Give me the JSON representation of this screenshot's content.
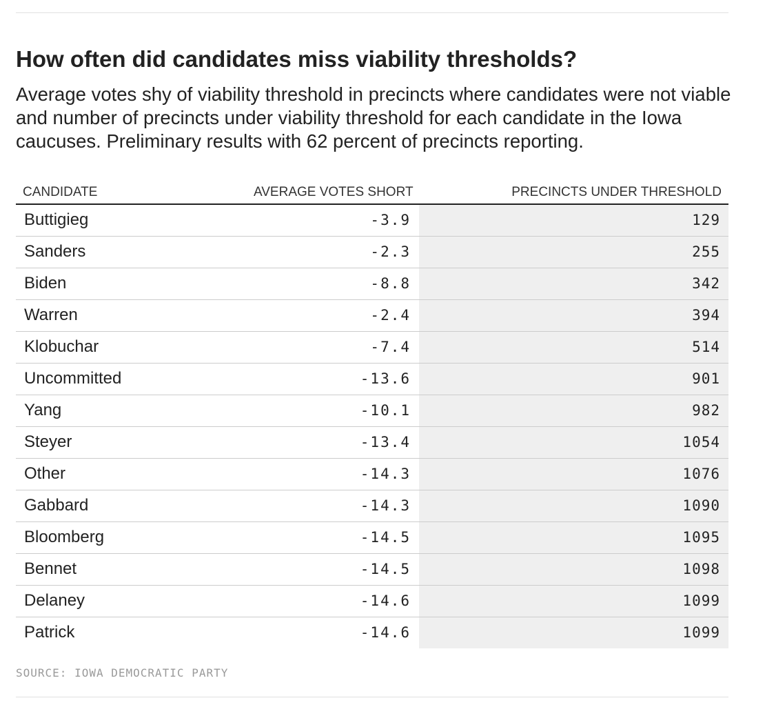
{
  "chart_data": {
    "type": "table",
    "title": "How often did candidates miss viability thresholds?",
    "subtitle": "Average votes shy of viability threshold in precincts where candidates were not viable and number of precincts under viability threshold for each candidate in the Iowa caucuses. Preliminary results with 62 percent of precincts reporting.",
    "columns": [
      "CANDIDATE",
      "AVERAGE VOTES SHORT",
      "PRECINCTS UNDER THRESHOLD"
    ],
    "rows": [
      {
        "candidate": "Buttigieg",
        "avg_votes_short": "-3.9",
        "precincts_under_threshold": "129"
      },
      {
        "candidate": "Sanders",
        "avg_votes_short": "-2.3",
        "precincts_under_threshold": "255"
      },
      {
        "candidate": "Biden",
        "avg_votes_short": "-8.8",
        "precincts_under_threshold": "342"
      },
      {
        "candidate": "Warren",
        "avg_votes_short": "-2.4",
        "precincts_under_threshold": "394"
      },
      {
        "candidate": "Klobuchar",
        "avg_votes_short": "-7.4",
        "precincts_under_threshold": "514"
      },
      {
        "candidate": "Uncommitted",
        "avg_votes_short": "-13.6",
        "precincts_under_threshold": "901"
      },
      {
        "candidate": "Yang",
        "avg_votes_short": "-10.1",
        "precincts_under_threshold": "982"
      },
      {
        "candidate": "Steyer",
        "avg_votes_short": "-13.4",
        "precincts_under_threshold": "1054"
      },
      {
        "candidate": "Other",
        "avg_votes_short": "-14.3",
        "precincts_under_threshold": "1076"
      },
      {
        "candidate": "Gabbard",
        "avg_votes_short": "-14.3",
        "precincts_under_threshold": "1090"
      },
      {
        "candidate": "Bloomberg",
        "avg_votes_short": "-14.5",
        "precincts_under_threshold": "1095"
      },
      {
        "candidate": "Bennet",
        "avg_votes_short": "-14.5",
        "precincts_under_threshold": "1098"
      },
      {
        "candidate": "Delaney",
        "avg_votes_short": "-14.6",
        "precincts_under_threshold": "1099"
      },
      {
        "candidate": "Patrick",
        "avg_votes_short": "-14.6",
        "precincts_under_threshold": "1099"
      }
    ],
    "source": "SOURCE: IOWA DEMOCRATIC PARTY"
  },
  "colors": {
    "text": "#222222",
    "header_rule": "#222222",
    "row_rule": "#cccccc",
    "highlight_column_bg": "#efefef",
    "source_text": "#9a9a9a"
  }
}
